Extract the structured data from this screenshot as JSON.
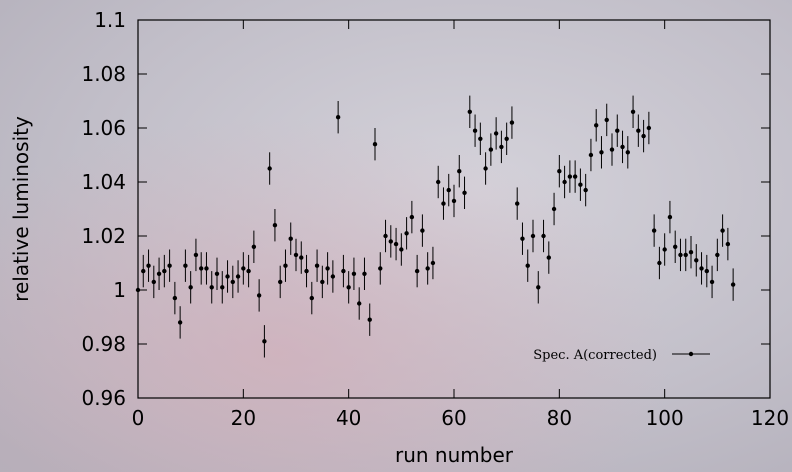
{
  "chart_data": {
    "type": "scatter",
    "xlabel": "run number",
    "ylabel": "relative luminosity",
    "xlim": [
      0,
      120
    ],
    "ylim": [
      0.96,
      1.1
    ],
    "xticks": [
      0,
      20,
      40,
      60,
      80,
      100,
      120
    ],
    "yticks": [
      0.96,
      0.98,
      1,
      1.02,
      1.04,
      1.06,
      1.08,
      1.1
    ],
    "legend_position": "lower right",
    "series": [
      {
        "name": "Spec. A(corrected)",
        "color": "#000000",
        "error": 0.006,
        "x": [
          0,
          1,
          2,
          3,
          4,
          5,
          6,
          7,
          8,
          9,
          10,
          11,
          12,
          13,
          14,
          15,
          16,
          17,
          18,
          19,
          20,
          21,
          22,
          23,
          24,
          25,
          26,
          27,
          28,
          29,
          30,
          31,
          32,
          33,
          34,
          35,
          36,
          37,
          38,
          39,
          40,
          41,
          42,
          43,
          44,
          45,
          46,
          47,
          48,
          49,
          50,
          51,
          52,
          53,
          54,
          55,
          56,
          57,
          58,
          59,
          60,
          61,
          62,
          63,
          64,
          65,
          66,
          67,
          68,
          69,
          70,
          71,
          72,
          73,
          74,
          75,
          76,
          77,
          78,
          79,
          80,
          81,
          82,
          83,
          84,
          85,
          86,
          87,
          88,
          89,
          90,
          91,
          92,
          93,
          94,
          95,
          96,
          97,
          98,
          99,
          100,
          101,
          102,
          103,
          104,
          105,
          106,
          107,
          108,
          109,
          110,
          111,
          112,
          113
        ],
        "values": [
          1.0,
          1.007,
          1.009,
          1.003,
          1.006,
          1.007,
          1.009,
          0.997,
          0.988,
          1.009,
          1.001,
          1.013,
          1.008,
          1.008,
          1.001,
          1.006,
          1.001,
          1.005,
          1.003,
          1.005,
          1.008,
          1.007,
          1.016,
          0.998,
          0.981,
          1.045,
          1.024,
          1.003,
          1.009,
          1.019,
          1.013,
          1.012,
          1.007,
          0.997,
          1.009,
          1.003,
          1.008,
          1.005,
          1.064,
          1.007,
          1.001,
          1.006,
          0.995,
          1.006,
          0.989,
          1.054,
          1.008,
          1.02,
          1.018,
          1.017,
          1.015,
          1.021,
          1.027,
          1.007,
          1.022,
          1.008,
          1.01,
          1.04,
          1.032,
          1.037,
          1.033,
          1.044,
          1.036,
          1.066,
          1.059,
          1.056,
          1.045,
          1.052,
          1.058,
          1.053,
          1.056,
          1.062,
          1.032,
          1.019,
          1.009,
          1.02,
          1.001,
          1.02,
          1.012,
          1.03,
          1.044,
          1.04,
          1.042,
          1.042,
          1.039,
          1.037,
          1.05,
          1.061,
          1.051,
          1.063,
          1.052,
          1.059,
          1.053,
          1.051,
          1.066,
          1.059,
          1.057,
          1.06,
          1.022,
          1.01,
          1.015,
          1.027,
          1.016,
          1.013,
          1.013,
          1.014,
          1.011,
          1.008,
          1.007,
          1.003,
          1.013,
          1.022,
          1.017,
          1.002
        ]
      }
    ]
  }
}
